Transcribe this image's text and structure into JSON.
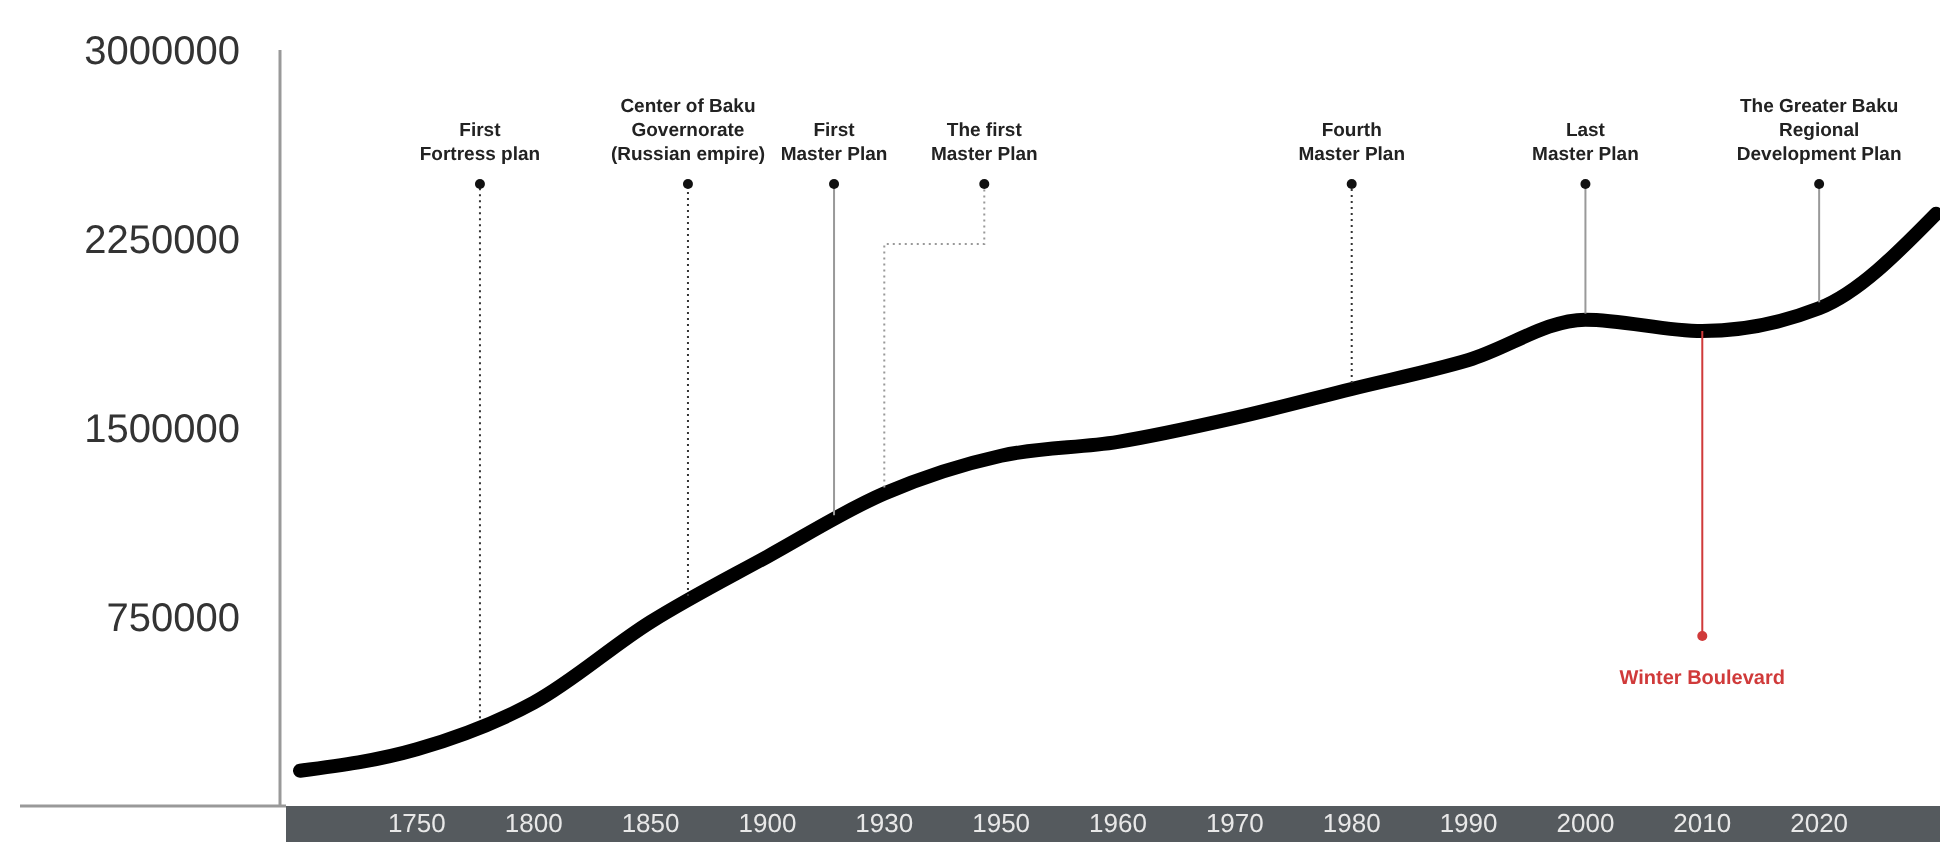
{
  "chart_data": {
    "type": "line",
    "categories": [
      null,
      "1750",
      "1800",
      "1850",
      "1900",
      "1930",
      "1950",
      "1960",
      "1970",
      "1980",
      "1990",
      "2000",
      "2010",
      "2020",
      null
    ],
    "series": [
      {
        "color": "#000000",
        "values": [
          140000,
          225000,
          410000,
          730000,
          990000,
          1240000,
          1390000,
          1445000,
          1540000,
          1655000,
          1770000,
          1930000,
          1885000,
          1975000,
          2350000
        ]
      }
    ],
    "ylim": [
      0,
      3000000
    ],
    "yticks": [
      750000,
      1500000,
      2250000,
      3000000
    ],
    "grid": false,
    "marker": "none",
    "line_style": "solid",
    "annotations": [
      "First\nFortress plan",
      {
        "text": "Center of Baku\nGovernorate\n(Russian empire)",
        "y": 810000
      },
      {
        "text": "First\nMaster Plan",
        "y": 1130000
      },
      {
        "text": "The first\nMaster Plan",
        "x": "1930",
        "y": 1240000
      },
      {
        "text": "Fourth\nMaster Plan",
        "x": "1980",
        "y": 1655000
      },
      {
        "text": "Last\nMaster Plan",
        "x": "2000",
        "y": 1930000
      },
      "Winter Boulevard",
      {
        "text": "The Greater Baku\nRegional\nDevelopment Plan",
        "x": "2020",
        "y": 1975000
      }
    ]
  }
}
